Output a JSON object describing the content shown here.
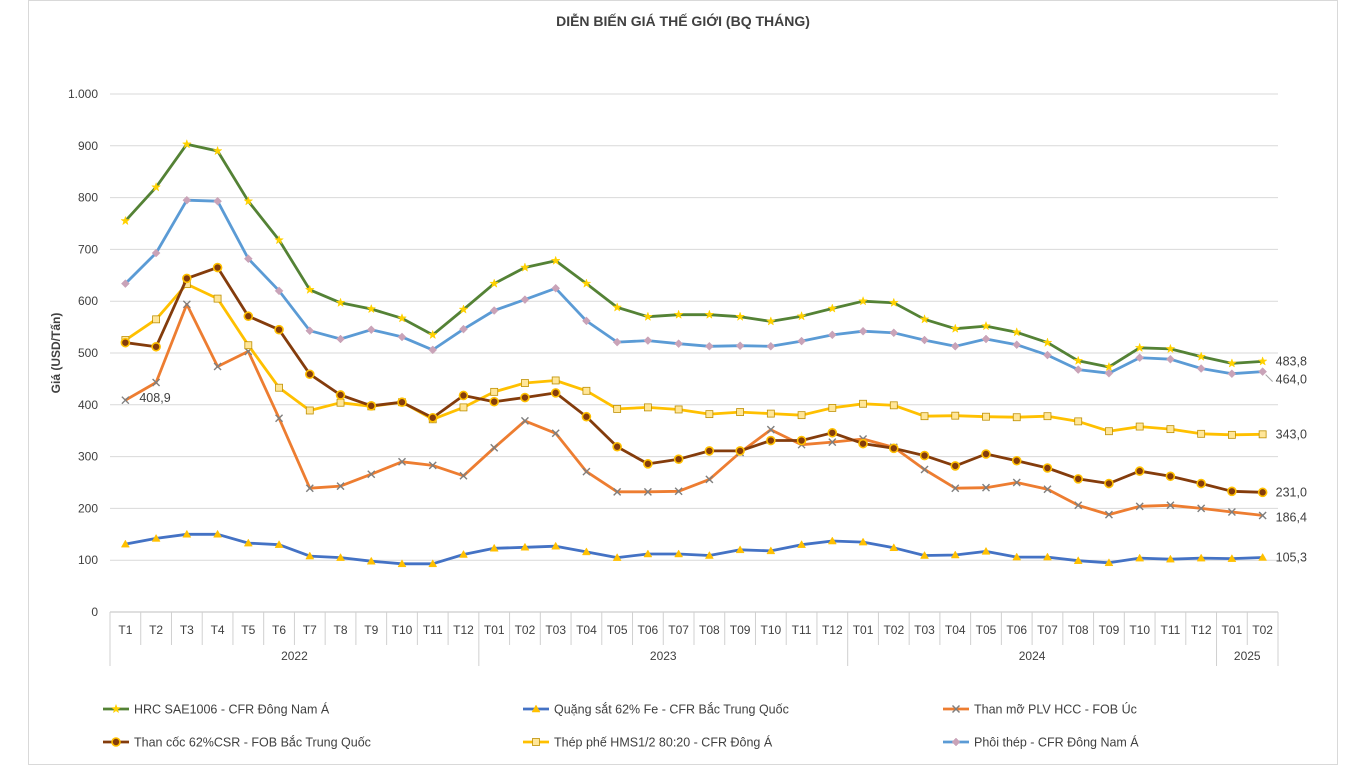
{
  "chart_data": {
    "type": "line",
    "title": "DIỄN BIẾN GIÁ THẾ GIỚI (BQ THÁNG)",
    "ylabel": "Giá (USD/Tấn)",
    "xlabel": "",
    "ylim": [
      0,
      1000
    ],
    "yticks": [
      0,
      100,
      200,
      300,
      400,
      500,
      600,
      700,
      800,
      900,
      1000
    ],
    "ytick_labels": [
      "0",
      "100",
      "200",
      "300",
      "400",
      "500",
      "600",
      "700",
      "800",
      "900",
      "1.000"
    ],
    "grid": true,
    "legend_position": "bottom",
    "categories": [
      "T1",
      "T2",
      "T3",
      "T4",
      "T5",
      "T6",
      "T7",
      "T8",
      "T9",
      "T10",
      "T11",
      "T12",
      "T01",
      "T02",
      "T03",
      "T04",
      "T05",
      "T06",
      "T07",
      "T08",
      "T09",
      "T10",
      "T11",
      "T12",
      "T01",
      "T02",
      "T03",
      "T04",
      "T05",
      "T06",
      "T07",
      "T08",
      "T09",
      "T10",
      "T11",
      "T12",
      "T01",
      "T02"
    ],
    "year_groups": [
      {
        "label": "2022",
        "count": 12
      },
      {
        "label": "2023",
        "count": 12
      },
      {
        "label": "2024",
        "count": 12
      },
      {
        "label": "2025",
        "count": 2
      }
    ],
    "series": [
      {
        "name": "HRC SAE1006 - CFR Đông Nam Á",
        "color": "#548235",
        "marker": "star",
        "marker_color": "#ffd100",
        "values": [
          755,
          820,
          903,
          890,
          793,
          718,
          622,
          597,
          585,
          567,
          535,
          584,
          634,
          665,
          678,
          634,
          588,
          570,
          574,
          574,
          570,
          561,
          571,
          586,
          600,
          597,
          565,
          547,
          552,
          540,
          520,
          485,
          473,
          510,
          508,
          493,
          480,
          483.8
        ],
        "end_label": "483,8"
      },
      {
        "name": "Phôi thép - CFR Đông Nam Á",
        "color": "#5b9bd5",
        "marker": "diamond",
        "marker_color": "#c9a3b8",
        "values": [
          634,
          693,
          795,
          793,
          682,
          620,
          543,
          527,
          545,
          531,
          506,
          546,
          582,
          603,
          625,
          562,
          521,
          524,
          518,
          513,
          514,
          513,
          523,
          535,
          542,
          539,
          525,
          513,
          527,
          516,
          496,
          468,
          461,
          491,
          488,
          470,
          460,
          464.0
        ],
        "end_label": "464,0"
      },
      {
        "name": "Thép phế HMS1/2 80:20 - CFR Đông Á",
        "color": "#ffc000",
        "marker": "square",
        "marker_color": "#ffe699",
        "values": [
          525,
          565,
          633,
          605,
          515,
          433,
          389,
          404,
          397,
          405,
          372,
          395,
          425,
          442,
          447,
          427,
          392,
          395,
          391,
          382,
          386,
          383,
          380,
          394,
          402,
          399,
          378,
          379,
          377,
          376,
          378,
          368,
          349,
          358,
          353,
          344,
          342,
          343.0
        ],
        "end_label": "343,0"
      },
      {
        "name": "Than cốc 62%CSR - FOB Bắc Trung Quốc",
        "color": "#843c0c",
        "marker": "circle",
        "marker_color": "#ffc000",
        "values": [
          520,
          512,
          644,
          665,
          571,
          545,
          459,
          419,
          398,
          405,
          375,
          418,
          406,
          414,
          423,
          377,
          319,
          286,
          295,
          311,
          311,
          331,
          331,
          346,
          325,
          316,
          302,
          282,
          305,
          292,
          278,
          257,
          248,
          272,
          262,
          248,
          233,
          231.0
        ],
        "end_label": "231,0"
      },
      {
        "name": "Than mỡ PLV HCC - FOB Úc",
        "color": "#ed7d31",
        "marker": "x",
        "marker_color": "#7f7f7f",
        "values": [
          408.9,
          443,
          594,
          474,
          503,
          374,
          239,
          243,
          266,
          290,
          283,
          263,
          317,
          369,
          345,
          271,
          232,
          232,
          233,
          256,
          308,
          352,
          323,
          328,
          334,
          318,
          275,
          239,
          240,
          250,
          237,
          206,
          188,
          204,
          206,
          200,
          193,
          186.4
        ],
        "start_label": "408,9",
        "end_label": "186,4"
      },
      {
        "name": "Quặng sắt 62% Fe - CFR Bắc Trung Quốc",
        "color": "#4472c4",
        "marker": "triangle",
        "marker_color": "#ffc000",
        "values": [
          131,
          142,
          150,
          150,
          133,
          130,
          108,
          105,
          98,
          93,
          93,
          111,
          123,
          125,
          127,
          116,
          105,
          112,
          112,
          109,
          120,
          118,
          130,
          137,
          135,
          124,
          109,
          110,
          117,
          106,
          106,
          99,
          95,
          104,
          102,
          104,
          103,
          105.3
        ],
        "end_label": "105,3"
      }
    ],
    "legend_order": [
      0,
      5,
      4,
      3,
      2,
      1
    ]
  }
}
